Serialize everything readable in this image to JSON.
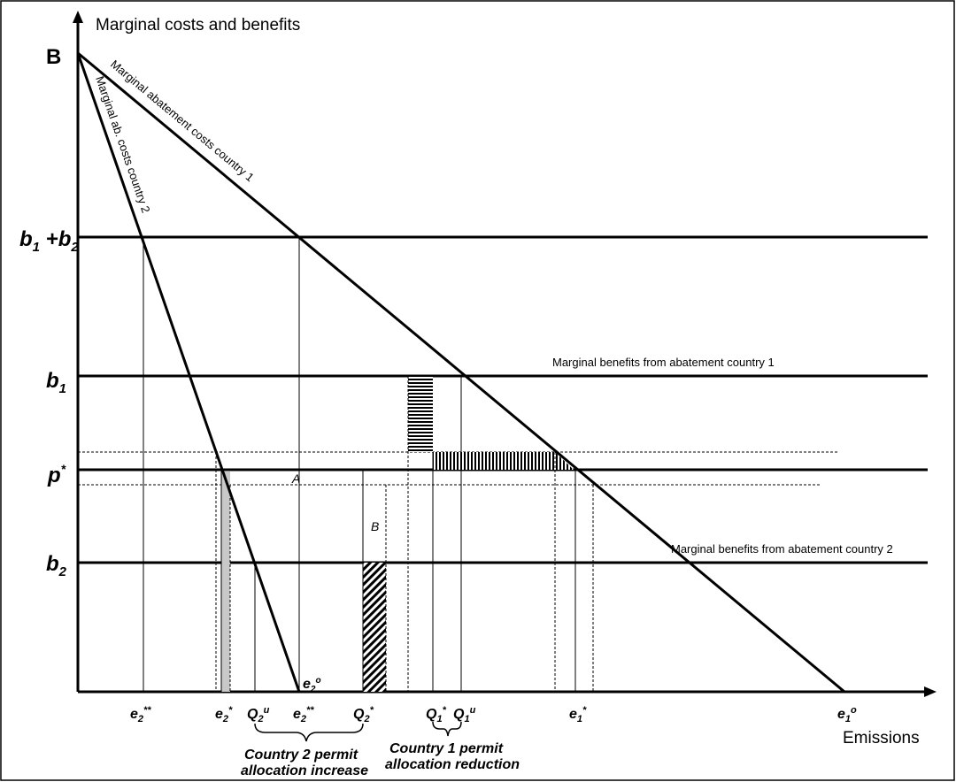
{
  "axes": {
    "y_title": "Marginal costs and benefits",
    "x_title": "Emissions"
  },
  "y_labels": {
    "B": "B",
    "b1b2": "b",
    "b1b2_sub1": "1",
    "b1b2_plus": " +b",
    "b1b2_sub2": "2",
    "b1": "b",
    "b1_sub": "1",
    "p": "p",
    "p_sup": "*",
    "b2": "b",
    "b2_sub": "2"
  },
  "x_labels": {
    "e2ss": {
      "base": "e",
      "sub": "2",
      "sup": "**"
    },
    "e2s": {
      "base": "e",
      "sub": "2",
      "sup": "*"
    },
    "q2u": {
      "base": "Q",
      "sub": "2",
      "sup": "u"
    },
    "e2ss_b": {
      "base": "e",
      "sub": "2",
      "sup": "**"
    },
    "q2s": {
      "base": "Q",
      "sub": "2",
      "sup": "*"
    },
    "q1s": {
      "base": "Q",
      "sub": "1",
      "sup": "*"
    },
    "q1u": {
      "base": "Q",
      "sub": "1",
      "sup": "u"
    },
    "e1s": {
      "base": "e",
      "sub": "1",
      "sup": "*"
    },
    "e1o": {
      "base": "e",
      "sub": "1",
      "sup": "o"
    },
    "e2o": {
      "base": "e",
      "sub": "2",
      "sup": "o"
    }
  },
  "curves": {
    "mac1": "Marginal abatement costs country 1",
    "mac2": "Marginal ab. costs country 2",
    "mb1": "Marginal benefits from abatement country 1",
    "mb2": "Marginal benefits from abatement country 2"
  },
  "areas": {
    "A": "A",
    "B": "B"
  },
  "braces": {
    "country2_line1": "Country 2 permit",
    "country2_line2": "allocation increase",
    "country1_line1": "Country 1 permit",
    "country1_line2": "allocation reduction"
  }
}
